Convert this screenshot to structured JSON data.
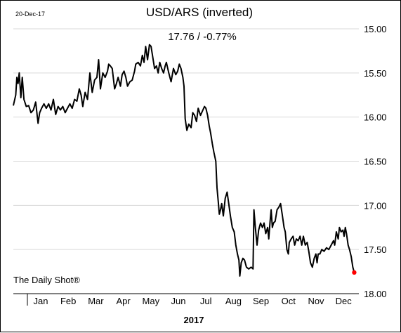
{
  "header": {
    "date": "20-Dec-17",
    "title": "USD/ARS (inverted)",
    "subtitle": "17.76  /  -0.77%"
  },
  "source": "The Daily Shot®",
  "year_label": "2017",
  "colors": {
    "line": "#000000",
    "last_point": "#ff0000",
    "grid": "#d9d9d9",
    "axis": "#000000"
  },
  "chart_data": {
    "type": "line",
    "title": "USD/ARS (inverted)",
    "y_inverted": true,
    "ylim": [
      15.0,
      18.0
    ],
    "y_ticks": [
      "15.00",
      "15.50",
      "16.00",
      "16.50",
      "17.00",
      "17.50",
      "18.00"
    ],
    "y_tick_values": [
      15.0,
      15.5,
      16.0,
      16.5,
      17.0,
      17.5,
      18.0
    ],
    "x_categories": [
      "Jan",
      "Feb",
      "Mar",
      "Apr",
      "May",
      "Jun",
      "Jul",
      "Aug",
      "Sep",
      "Oct",
      "Nov",
      "Dec"
    ],
    "grid": true,
    "grid_axis": "y",
    "legend": "none",
    "last_value": 17.76,
    "series": [
      {
        "points": [
          [
            0.0,
            15.87
          ],
          [
            0.1,
            15.75
          ],
          [
            0.15,
            15.55
          ],
          [
            0.2,
            15.62
          ],
          [
            0.25,
            15.5
          ],
          [
            0.32,
            15.78
          ],
          [
            0.38,
            15.55
          ],
          [
            0.45,
            15.8
          ],
          [
            0.55,
            15.88
          ],
          [
            0.65,
            15.87
          ],
          [
            0.75,
            15.95
          ],
          [
            0.85,
            15.92
          ],
          [
            0.95,
            15.83
          ],
          [
            1.05,
            16.07
          ],
          [
            1.12,
            15.95
          ],
          [
            1.2,
            15.9
          ],
          [
            1.3,
            15.85
          ],
          [
            1.4,
            15.9
          ],
          [
            1.5,
            15.85
          ],
          [
            1.6,
            15.92
          ],
          [
            1.7,
            15.8
          ],
          [
            1.8,
            15.97
          ],
          [
            1.9,
            15.88
          ],
          [
            2.0,
            15.92
          ],
          [
            2.1,
            15.88
          ],
          [
            2.2,
            15.95
          ],
          [
            2.3,
            15.9
          ],
          [
            2.4,
            15.85
          ],
          [
            2.5,
            15.9
          ],
          [
            2.6,
            15.8
          ],
          [
            2.7,
            15.82
          ],
          [
            2.8,
            15.68
          ],
          [
            2.88,
            15.75
          ],
          [
            2.95,
            15.88
          ],
          [
            3.05,
            15.72
          ],
          [
            3.15,
            15.8
          ],
          [
            3.25,
            15.5
          ],
          [
            3.35,
            15.72
          ],
          [
            3.45,
            15.58
          ],
          [
            3.55,
            15.55
          ],
          [
            3.62,
            15.35
          ],
          [
            3.7,
            15.68
          ],
          [
            3.8,
            15.5
          ],
          [
            3.9,
            15.55
          ],
          [
            4.0,
            15.48
          ],
          [
            4.05,
            15.4
          ],
          [
            4.12,
            15.42
          ],
          [
            4.2,
            15.45
          ],
          [
            4.3,
            15.68
          ],
          [
            4.38,
            15.62
          ],
          [
            4.45,
            15.55
          ],
          [
            4.55,
            15.65
          ],
          [
            4.62,
            15.52
          ],
          [
            4.7,
            15.48
          ],
          [
            4.78,
            15.55
          ],
          [
            4.85,
            15.65
          ],
          [
            4.95,
            15.6
          ],
          [
            5.05,
            15.58
          ],
          [
            5.15,
            15.48
          ],
          [
            5.2,
            15.4
          ],
          [
            5.3,
            15.38
          ],
          [
            5.4,
            15.42
          ],
          [
            5.48,
            15.3
          ],
          [
            5.55,
            15.38
          ],
          [
            5.62,
            15.2
          ],
          [
            5.7,
            15.35
          ],
          [
            5.78,
            15.18
          ],
          [
            5.85,
            15.2
          ],
          [
            5.92,
            15.32
          ],
          [
            6.0,
            15.45
          ],
          [
            6.08,
            15.42
          ],
          [
            6.15,
            15.5
          ],
          [
            6.22,
            15.38
          ],
          [
            6.3,
            15.45
          ],
          [
            6.38,
            15.5
          ],
          [
            6.45,
            15.42
          ],
          [
            6.5,
            15.38
          ],
          [
            6.6,
            15.5
          ],
          [
            6.7,
            15.6
          ],
          [
            6.8,
            15.45
          ],
          [
            6.9,
            15.52
          ],
          [
            6.98,
            15.48
          ],
          [
            7.05,
            15.4
          ],
          [
            7.12,
            15.45
          ],
          [
            7.2,
            15.55
          ],
          [
            7.25,
            15.65
          ],
          [
            7.3,
            16.02
          ],
          [
            7.37,
            16.15
          ],
          [
            7.45,
            16.08
          ],
          [
            7.55,
            16.12
          ],
          [
            7.62,
            15.95
          ],
          [
            7.7,
            15.98
          ],
          [
            7.78,
            16.05
          ],
          [
            7.85,
            15.9
          ],
          [
            7.95,
            15.98
          ],
          [
            8.05,
            15.92
          ],
          [
            8.12,
            15.88
          ],
          [
            8.18,
            15.9
          ],
          [
            8.25,
            15.98
          ],
          [
            8.32,
            16.1
          ],
          [
            8.38,
            16.18
          ],
          [
            8.45,
            16.3
          ],
          [
            8.52,
            16.4
          ],
          [
            8.6,
            16.5
          ],
          [
            8.65,
            16.8
          ],
          [
            8.7,
            16.95
          ],
          [
            8.75,
            17.1
          ],
          [
            8.8,
            17.05
          ],
          [
            8.85,
            16.98
          ],
          [
            8.92,
            17.12
          ],
          [
            9.0,
            16.92
          ],
          [
            9.08,
            16.85
          ],
          [
            9.15,
            16.98
          ],
          [
            9.22,
            17.12
          ],
          [
            9.3,
            17.25
          ],
          [
            9.38,
            17.3
          ],
          [
            9.45,
            17.45
          ],
          [
            9.52,
            17.55
          ],
          [
            9.58,
            17.62
          ],
          [
            9.62,
            17.8
          ],
          [
            9.68,
            17.65
          ],
          [
            9.75,
            17.6
          ],
          [
            9.82,
            17.62
          ],
          [
            9.9,
            17.7
          ],
          [
            10.0,
            17.72
          ],
          [
            10.1,
            17.7
          ],
          [
            10.18,
            17.72
          ],
          [
            10.22,
            17.05
          ],
          [
            10.28,
            17.25
          ],
          [
            10.35,
            17.45
          ],
          [
            10.42,
            17.28
          ],
          [
            10.5,
            17.2
          ],
          [
            10.58,
            17.25
          ],
          [
            10.65,
            17.2
          ],
          [
            10.72,
            17.32
          ],
          [
            10.8,
            17.25
          ],
          [
            10.85,
            17.38
          ],
          [
            10.9,
            17.2
          ],
          [
            10.95,
            17.05
          ],
          [
            11.0,
            17.25
          ],
          [
            11.05,
            17.2
          ],
          [
            11.12,
            17.18
          ],
          [
            11.2,
            17.05
          ],
          [
            11.28,
            17.02
          ],
          [
            11.35,
            16.98
          ],
          [
            11.42,
            17.1
          ],
          [
            11.5,
            17.25
          ],
          [
            11.55,
            17.3
          ],
          [
            11.62,
            17.5
          ],
          [
            11.68,
            17.55
          ],
          [
            11.72,
            17.42
          ],
          [
            11.8,
            17.38
          ],
          [
            11.88,
            17.35
          ],
          [
            11.95,
            17.45
          ],
          [
            12.02,
            17.38
          ],
          [
            12.1,
            17.4
          ],
          [
            12.18,
            17.35
          ],
          [
            12.25,
            17.45
          ],
          [
            12.32,
            17.35
          ],
          [
            12.4,
            17.45
          ],
          [
            12.48,
            17.42
          ],
          [
            12.55,
            17.52
          ],
          [
            12.62,
            17.65
          ],
          [
            12.7,
            17.7
          ],
          [
            12.78,
            17.6
          ],
          [
            12.85,
            17.55
          ],
          [
            12.9,
            17.65
          ],
          [
            12.95,
            17.55
          ],
          [
            13.02,
            17.55
          ],
          [
            13.1,
            17.5
          ],
          [
            13.2,
            17.52
          ],
          [
            13.3,
            17.48
          ],
          [
            13.4,
            17.5
          ],
          [
            13.5,
            17.45
          ],
          [
            13.6,
            17.4
          ],
          [
            13.65,
            17.45
          ],
          [
            13.72,
            17.3
          ],
          [
            13.8,
            17.38
          ],
          [
            13.85,
            17.25
          ],
          [
            13.92,
            17.3
          ],
          [
            14.0,
            17.28
          ],
          [
            14.05,
            17.35
          ],
          [
            14.1,
            17.25
          ],
          [
            14.15,
            17.32
          ],
          [
            14.22,
            17.45
          ],
          [
            14.28,
            17.5
          ],
          [
            14.35,
            17.58
          ],
          [
            14.42,
            17.7
          ],
          [
            14.48,
            17.76
          ]
        ]
      }
    ]
  }
}
